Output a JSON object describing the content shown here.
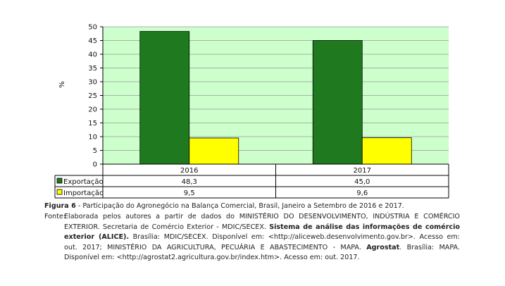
{
  "chart_data": {
    "type": "bar",
    "categories": [
      "2016",
      "2017"
    ],
    "series": [
      {
        "name": "Exportação",
        "values": [
          48.3,
          45.0
        ],
        "labels": [
          "48,3",
          "45,0"
        ],
        "color": "#1f7a1f"
      },
      {
        "name": "Importação",
        "values": [
          9.5,
          9.6
        ],
        "labels": [
          "9,5",
          "9,6"
        ],
        "color": "#ffff00"
      }
    ],
    "ylabel": "%",
    "ylim": [
      0,
      50
    ],
    "yticks": [
      "0",
      "5",
      "10",
      "15",
      "20",
      "25",
      "30",
      "35",
      "40",
      "45",
      "50"
    ],
    "plot_background": "#ccffcc",
    "grid": true,
    "legend": "data-table"
  },
  "caption": {
    "label": "Figura 6",
    "text": " - Participação do Agronegócio na Balança Comercial, Brasil, Janeiro a Setembro de 2016 e 2017."
  },
  "source": {
    "label": "Fonte:",
    "part1": "Elaborada pelos autores a partir de dados do MINISTÉRIO DO DESENVOLVIMENTO, INDÚSTRIA E COMÉRCIO EXTERIOR. Secretaria de Comércio Exterior - MDIC/SECEX. ",
    "bold1": "Sistema de análise das informações de comércio exterior (ALICE).",
    "part2": " Brasília: MDIC/SECEX. Disponível em: <http://aliceweb.desenvolvimento.gov.br>. Acesso em: out. 2017; MINISTÉRIO DA AGRICULTURA, PECUÁRIA E ABASTECIMENTO - MAPA. ",
    "bold2": "Agrostat",
    "part3": ". Brasília: MAPA. Disponível em: <http://agrostat2.agricultura.gov.br/index.htm>. Acesso em: out. 2017."
  }
}
